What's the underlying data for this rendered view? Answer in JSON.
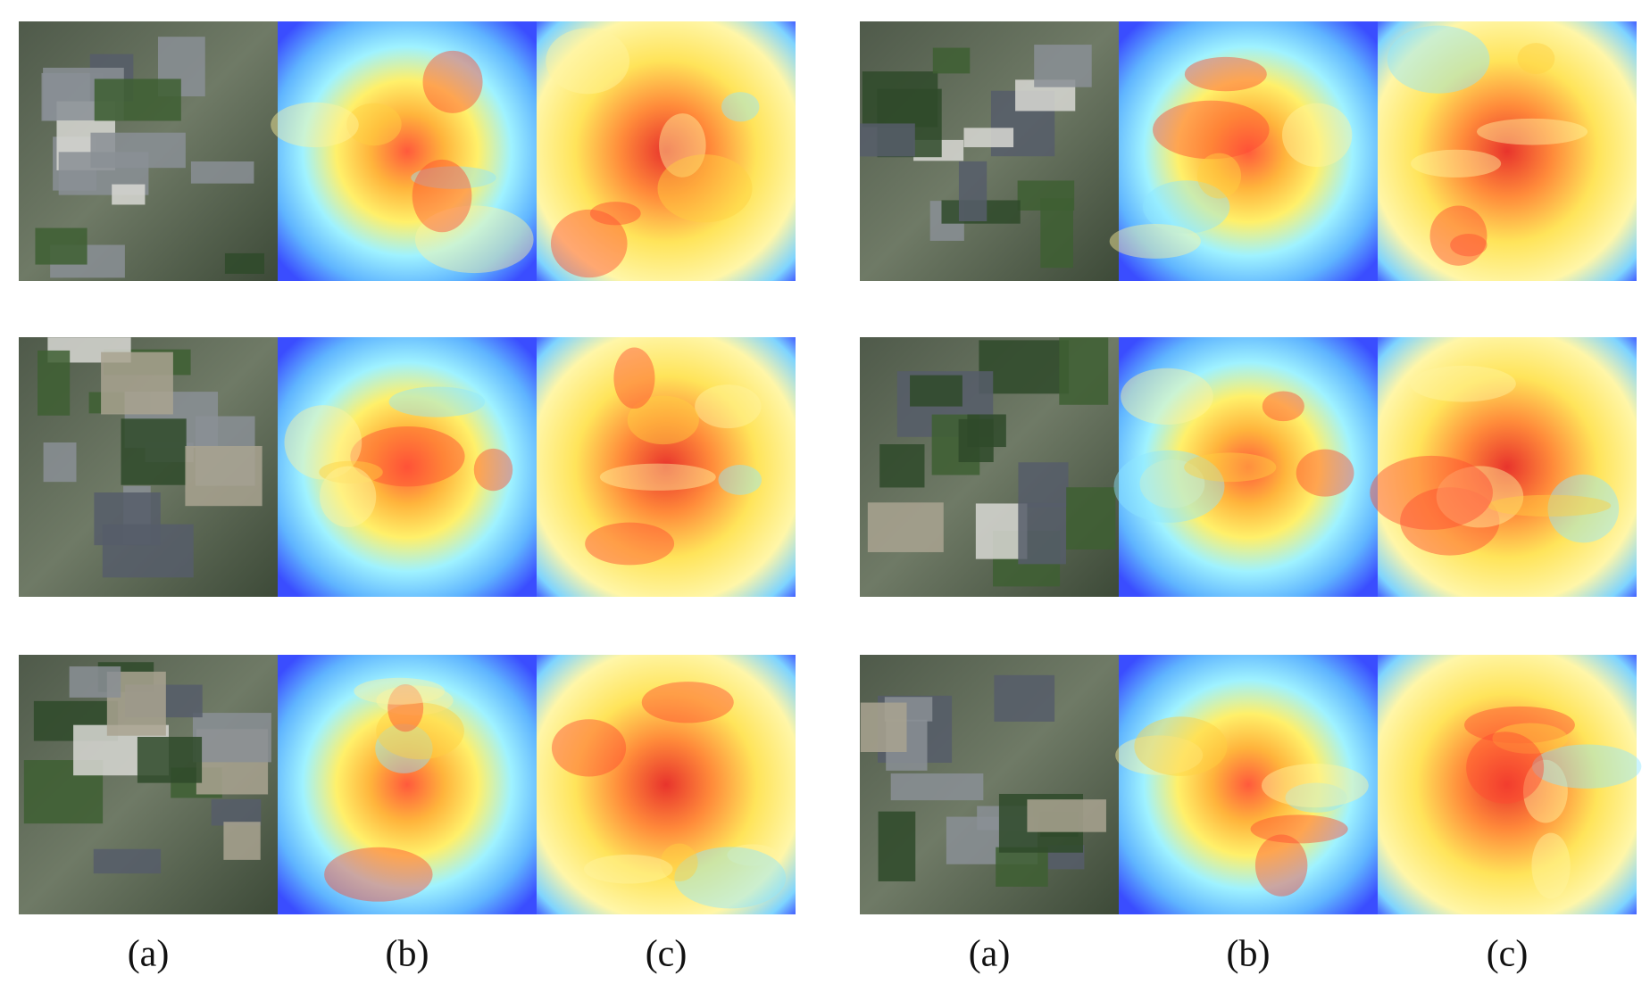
{
  "figure": {
    "groups": [
      {
        "labels": [
          "(a)",
          "(b)",
          "(c)"
        ]
      },
      {
        "labels": [
          "(a)",
          "(b)",
          "(c)"
        ]
      }
    ]
  }
}
